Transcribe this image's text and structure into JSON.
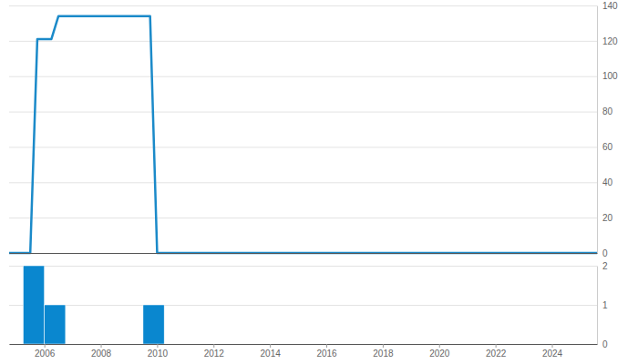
{
  "chart_data": [
    {
      "type": "line",
      "x": [
        2004.75,
        2005.5,
        2005.75,
        2006.25,
        2006.5,
        2009.75,
        2010.0,
        2025.6
      ],
      "values": [
        0,
        0,
        121,
        121,
        134,
        134,
        0,
        0
      ],
      "color": "#1b8ac9",
      "xlim": [
        2004.75,
        2025.6
      ],
      "ylim": [
        0,
        140
      ],
      "yticks": [
        0,
        20,
        40,
        60,
        80,
        100,
        120,
        140
      ],
      "grid": true,
      "tick_labels": "y"
    },
    {
      "type": "histogram",
      "bins": [
        2005.25,
        2006.0,
        2006.75,
        2009.5,
        2010.25
      ],
      "values": [
        2,
        1,
        0,
        1
      ],
      "color": "#0a87cf",
      "xlim": [
        2004.75,
        2025.6
      ],
      "xticks": [
        2006,
        2008,
        2010,
        2012,
        2014,
        2016,
        2018,
        2020,
        2022,
        2024
      ],
      "ylim": [
        0,
        2
      ],
      "yticks": [
        0,
        1,
        2
      ],
      "grid": true
    }
  ]
}
